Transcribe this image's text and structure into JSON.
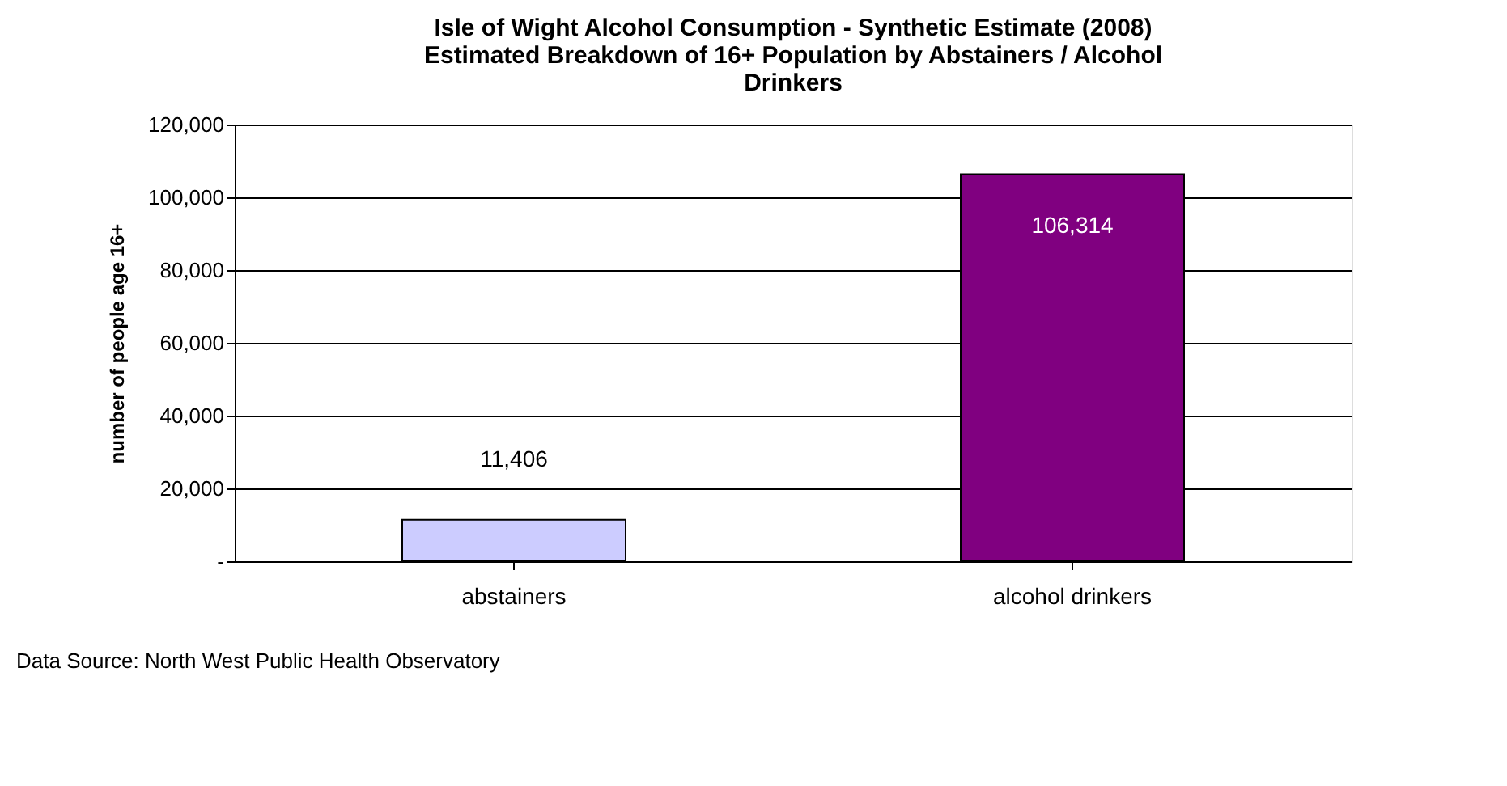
{
  "chart_data": {
    "type": "bar",
    "title": "Isle of Wight Alcohol Consumption - Synthetic Estimate (2008)\nEstimated Breakdown of 16+ Population by Abstainers / Alcohol\nDrinkers",
    "ylabel": "number of people age 16+",
    "categories": [
      "abstainers",
      "alcohol drinkers"
    ],
    "values": [
      11406,
      106314
    ],
    "colors": [
      "#ccccff",
      "#800080"
    ],
    "value_labels": [
      "11,406",
      "106,314"
    ],
    "ylim": [
      0,
      120000
    ],
    "yticks": [
      {
        "value": 0,
        "label": "-"
      },
      {
        "value": 20000,
        "label": "20,000"
      },
      {
        "value": 40000,
        "label": "40,000"
      },
      {
        "value": 60000,
        "label": "60,000"
      },
      {
        "value": 80000,
        "label": "80,000"
      },
      {
        "value": 100000,
        "label": "100,000"
      },
      {
        "value": 120000,
        "label": "120,000"
      }
    ],
    "grid": "y",
    "annotations": [
      "Data Source: North West Public Health Observatory"
    ]
  }
}
